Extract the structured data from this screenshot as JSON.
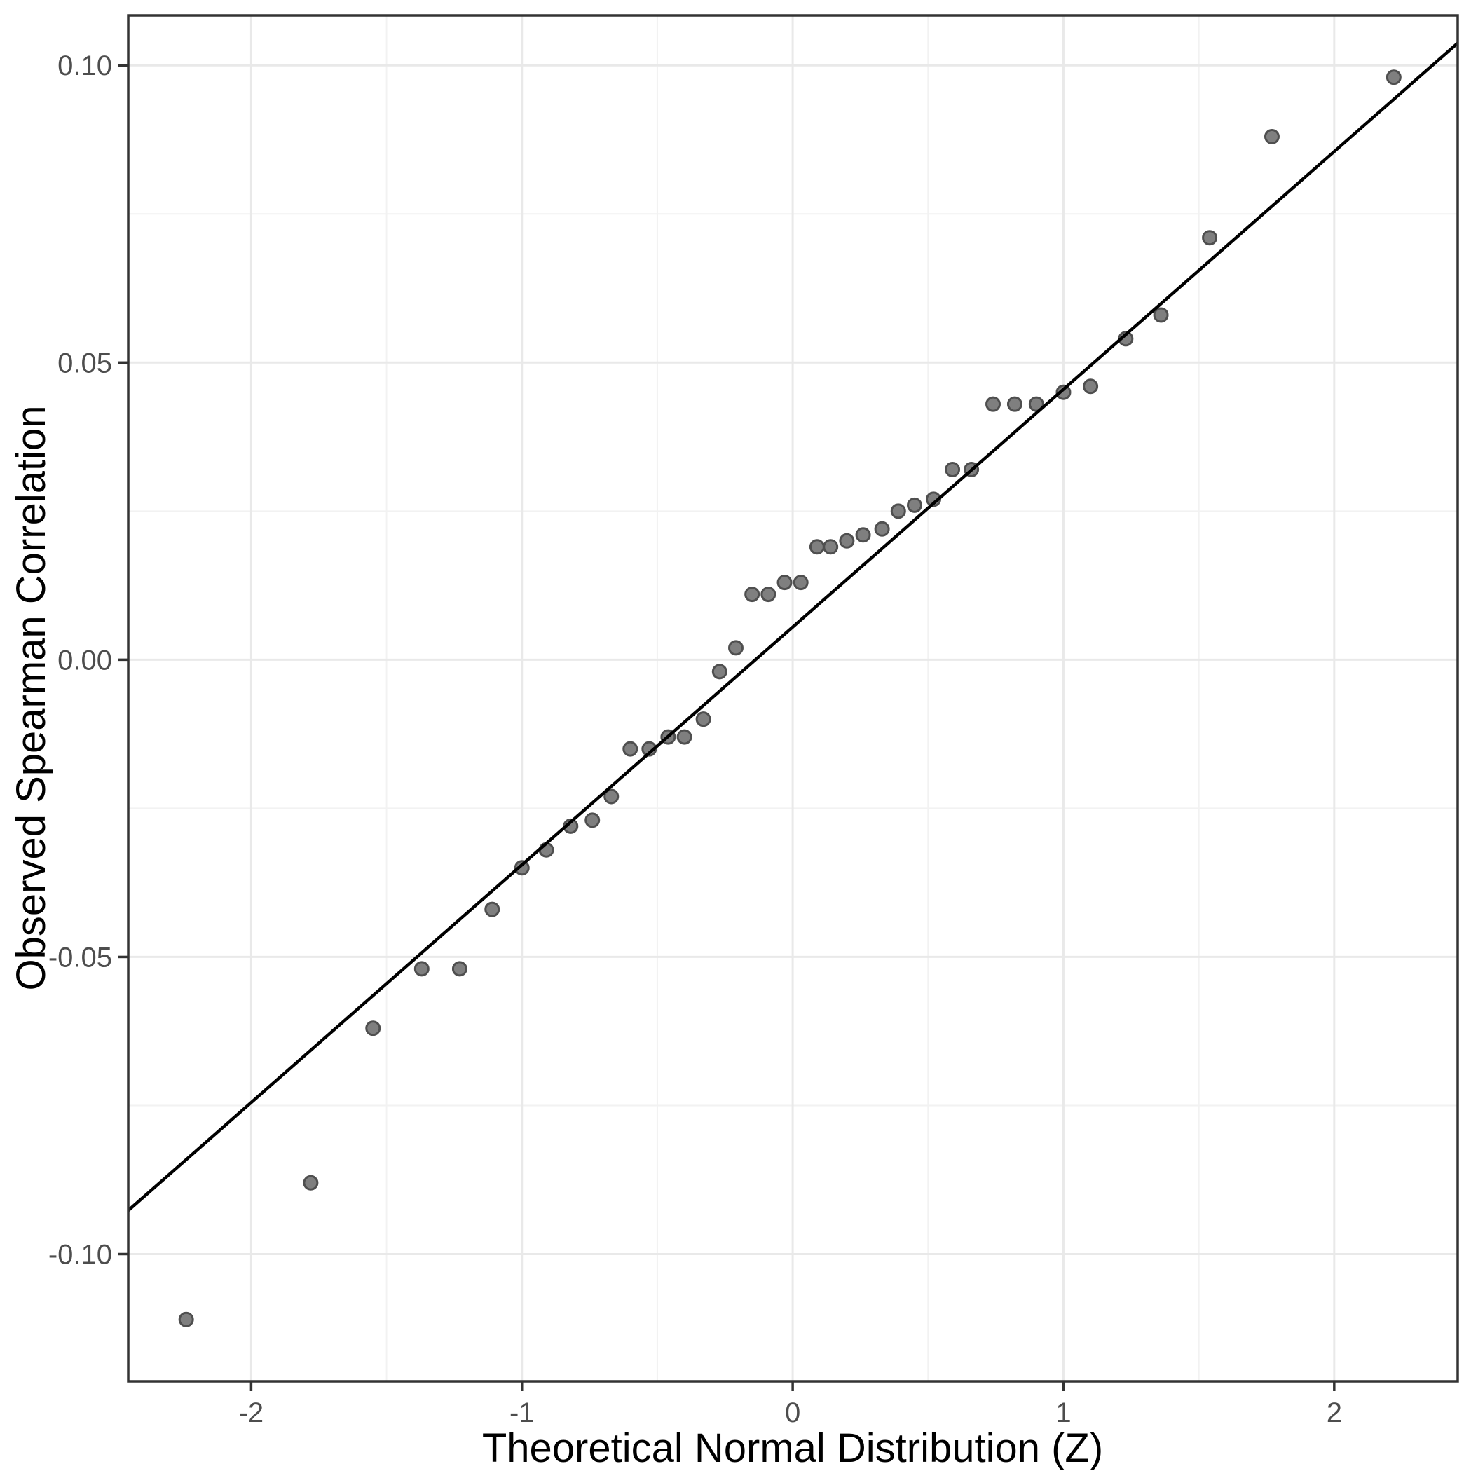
{
  "figure": {
    "background": "#ffffff"
  },
  "chart_data": {
    "type": "scatter",
    "title": "",
    "xlabel": "Theoretical Normal Distribution (Z)",
    "ylabel": "Observed Spearman Correlation",
    "xlim": [
      -2.454,
      2.456
    ],
    "ylim": [
      -0.1214,
      0.1084
    ],
    "grid": true,
    "legend": "none",
    "x_ticks": {
      "values": [
        -2,
        -1,
        0,
        1,
        2
      ],
      "labels": [
        "-2",
        "-1",
        "0",
        "1",
        "2"
      ]
    },
    "y_ticks": {
      "values": [
        0.1,
        0.05,
        0.0,
        -0.05,
        -0.1
      ],
      "labels": [
        "0.10",
        "0.05",
        "0.00",
        "-0.05",
        "-0.10"
      ]
    },
    "x_minor_gridlines": [
      -1.5,
      -0.5,
      0.5,
      1.5
    ],
    "y_minor_gridlines": [
      -0.075,
      -0.025,
      0.025,
      0.075
    ],
    "points": [
      [
        -2.24,
        -0.111
      ],
      [
        -1.78,
        -0.088
      ],
      [
        -1.55,
        -0.062
      ],
      [
        -1.37,
        -0.052
      ],
      [
        -1.23,
        -0.052
      ],
      [
        -1.11,
        -0.042
      ],
      [
        -1.0,
        -0.035
      ],
      [
        -0.91,
        -0.032
      ],
      [
        -0.82,
        -0.028
      ],
      [
        -0.74,
        -0.027
      ],
      [
        -0.67,
        -0.023
      ],
      [
        -0.6,
        -0.015
      ],
      [
        -0.53,
        -0.015
      ],
      [
        -0.46,
        -0.013
      ],
      [
        -0.4,
        -0.013
      ],
      [
        -0.33,
        -0.01
      ],
      [
        -0.27,
        -0.002
      ],
      [
        -0.21,
        0.002
      ],
      [
        -0.15,
        0.011
      ],
      [
        -0.09,
        0.011
      ],
      [
        -0.03,
        0.013
      ],
      [
        0.03,
        0.013
      ],
      [
        0.09,
        0.019
      ],
      [
        0.14,
        0.019
      ],
      [
        0.2,
        0.02
      ],
      [
        0.26,
        0.021
      ],
      [
        0.33,
        0.022
      ],
      [
        0.39,
        0.025
      ],
      [
        0.45,
        0.026
      ],
      [
        0.52,
        0.027
      ],
      [
        0.59,
        0.032
      ],
      [
        0.66,
        0.032
      ],
      [
        0.74,
        0.043
      ],
      [
        0.82,
        0.043
      ],
      [
        0.9,
        0.043
      ],
      [
        1.0,
        0.045
      ],
      [
        1.1,
        0.046
      ],
      [
        1.23,
        0.054
      ],
      [
        1.36,
        0.058
      ],
      [
        1.54,
        0.071
      ],
      [
        1.77,
        0.088
      ],
      [
        2.22,
        0.098
      ]
    ],
    "reference_line": {
      "slope": 0.04,
      "intercept": 0.0055
    },
    "styles": {
      "point_fill": "#7f7f7f",
      "point_stroke": "#4f4f4f",
      "line_color": "#000000",
      "panel_border_color": "#333333",
      "tick_color": "#333333",
      "grid_major_color": "#e9e9e9",
      "grid_minor_color": "#f2f2f2",
      "tick_text_color": "#4d4d4d",
      "title_text_color": "#000000"
    }
  }
}
